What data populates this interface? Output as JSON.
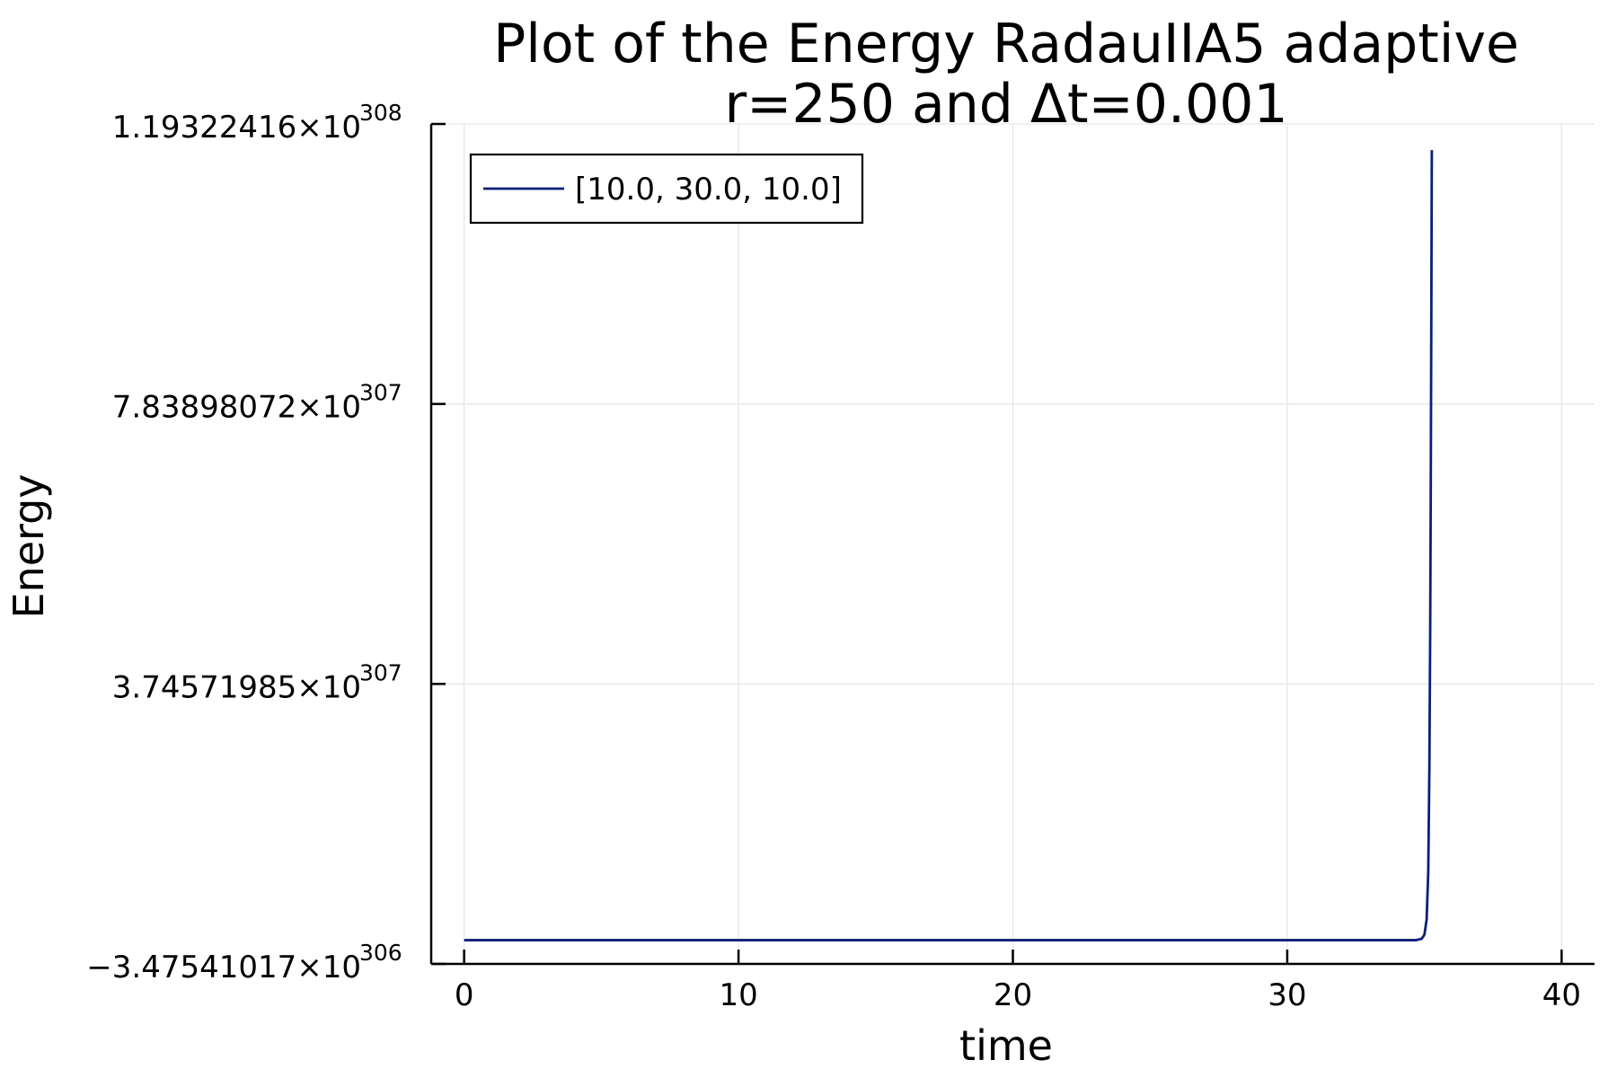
{
  "chart_data": {
    "type": "line",
    "title": "Plot of the Energy RadauIIA5 adaptive",
    "subtitle": "r=250 and Δt=0.001",
    "xlabel": "time",
    "ylabel": "Energy",
    "xlim": [
      -1.2,
      41.2
    ],
    "ylim": [
      -3.47541017e+306,
      1.19322416e+308
    ],
    "x_ticks": [
      {
        "value": 0,
        "label": "0"
      },
      {
        "value": 10,
        "label": "10"
      },
      {
        "value": 20,
        "label": "20"
      },
      {
        "value": 30,
        "label": "30"
      },
      {
        "value": 40,
        "label": "40"
      }
    ],
    "y_ticks": [
      {
        "value": -3.47541017e+306,
        "mantissa": "−3.47541017×10",
        "exponent": "306"
      },
      {
        "value": 3.74571985e+307,
        "mantissa": "3.74571985×10",
        "exponent": "307"
      },
      {
        "value": 7.83898072e+307,
        "mantissa": "7.83898072×10",
        "exponent": "307"
      },
      {
        "value": 1.19322416e+308,
        "mantissa": "1.19322416×10",
        "exponent": "308"
      }
    ],
    "grid": true,
    "legend_position": "top-left",
    "series": [
      {
        "name": "[10.0, 30.0, 10.0]",
        "color": "#0a1f78",
        "x": [
          0,
          10,
          20,
          30,
          34.7,
          34.9,
          35.0,
          35.08,
          35.14,
          35.18,
          35.21,
          35.23,
          35.25,
          35.27
        ],
        "y": [
          0,
          0,
          0,
          0,
          0,
          2e+305,
          8e+305,
          3e+306,
          1e+307,
          2.5e+307,
          4.5e+307,
          6.5e+307,
          9e+307,
          1.155e+308
        ]
      }
    ]
  }
}
